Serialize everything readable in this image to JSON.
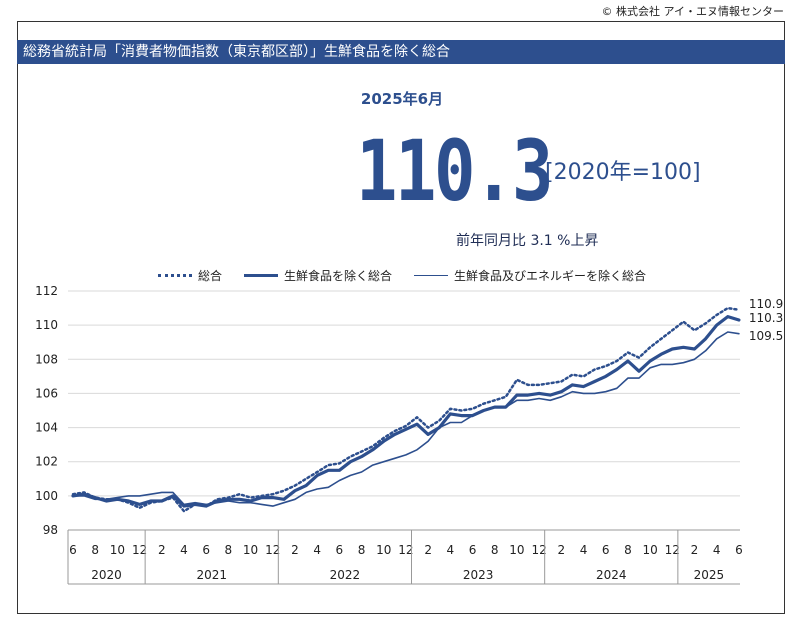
{
  "copyright": "© 株式会社 アイ・エヌ情報センター",
  "title": "総務省統計局「消費者物価指数（東京都区部）」生鮮食品を除く総合",
  "period": "2025年6月",
  "headline_value": "110.3",
  "base": "[2020年=100]",
  "yoy": "前年同月比  3.1 %上昇",
  "colors": {
    "accent": "#2d4f8e",
    "series": "#2d4f8e"
  },
  "chart_data": {
    "type": "line",
    "title": "",
    "xlabel": "",
    "ylabel": "",
    "ylim": [
      98,
      112
    ],
    "yticks": [
      98,
      100,
      102,
      104,
      106,
      108,
      110,
      112
    ],
    "grid": true,
    "legend_position": "top",
    "x_month_labels": [
      "6",
      "8",
      "10",
      "12",
      "2",
      "4",
      "6",
      "8",
      "10",
      "12",
      "2",
      "4",
      "6",
      "8",
      "10",
      "12",
      "2",
      "4",
      "6",
      "8",
      "10",
      "12",
      "2",
      "4",
      "6",
      "8",
      "10",
      "12",
      "2",
      "4",
      "6"
    ],
    "year_labels": [
      "2020",
      "2021",
      "2022",
      "2023",
      "2024",
      "2025"
    ],
    "x": [
      "2020-06",
      "2020-07",
      "2020-08",
      "2020-09",
      "2020-10",
      "2020-11",
      "2020-12",
      "2021-01",
      "2021-02",
      "2021-03",
      "2021-04",
      "2021-05",
      "2021-06",
      "2021-07",
      "2021-08",
      "2021-09",
      "2021-10",
      "2021-11",
      "2021-12",
      "2022-01",
      "2022-02",
      "2022-03",
      "2022-04",
      "2022-05",
      "2022-06",
      "2022-07",
      "2022-08",
      "2022-09",
      "2022-10",
      "2022-11",
      "2022-12",
      "2023-01",
      "2023-02",
      "2023-03",
      "2023-04",
      "2023-05",
      "2023-06",
      "2023-07",
      "2023-08",
      "2023-09",
      "2023-10",
      "2023-11",
      "2023-12",
      "2024-01",
      "2024-02",
      "2024-03",
      "2024-04",
      "2024-05",
      "2024-06",
      "2024-07",
      "2024-08",
      "2024-09",
      "2024-10",
      "2024-11",
      "2024-12",
      "2025-01",
      "2025-02",
      "2025-03",
      "2025-04",
      "2025-05",
      "2025-06"
    ],
    "series": [
      {
        "name": "総合",
        "style": "dotted",
        "values": [
          100.1,
          100.2,
          99.9,
          99.8,
          99.8,
          99.6,
          99.3,
          99.6,
          99.7,
          99.9,
          99.1,
          99.5,
          99.4,
          99.8,
          99.9,
          100.1,
          99.9,
          100.0,
          100.1,
          100.3,
          100.6,
          101.0,
          101.4,
          101.8,
          101.9,
          102.3,
          102.6,
          102.9,
          103.4,
          103.8,
          104.1,
          104.6,
          104.0,
          104.4,
          105.1,
          105.0,
          105.1,
          105.4,
          105.6,
          105.8,
          106.8,
          106.5,
          106.5,
          106.6,
          106.7,
          107.1,
          107.0,
          107.4,
          107.6,
          107.9,
          108.4,
          108.1,
          108.7,
          109.2,
          109.7,
          110.2,
          109.7,
          110.1,
          110.6,
          111.0,
          110.9
        ]
      },
      {
        "name": "生鮮食品を除く総合",
        "style": "thick",
        "values": [
          100.0,
          100.1,
          99.9,
          99.7,
          99.8,
          99.7,
          99.5,
          99.7,
          99.7,
          100.0,
          99.4,
          99.5,
          99.4,
          99.7,
          99.8,
          99.8,
          99.7,
          99.9,
          99.9,
          99.8,
          100.3,
          100.6,
          101.2,
          101.5,
          101.5,
          102.0,
          102.3,
          102.7,
          103.2,
          103.6,
          103.9,
          104.2,
          103.6,
          104.0,
          104.8,
          104.7,
          104.7,
          105.0,
          105.2,
          105.2,
          105.9,
          105.9,
          106.0,
          105.9,
          106.1,
          106.5,
          106.4,
          106.7,
          107.0,
          107.4,
          107.9,
          107.3,
          107.9,
          108.3,
          108.6,
          108.7,
          108.6,
          109.2,
          110.0,
          110.5,
          110.3
        ]
      },
      {
        "name": "生鮮食品及びエネルギーを除く総合",
        "style": "thin",
        "values": [
          100.0,
          100.0,
          99.8,
          99.8,
          99.9,
          100.0,
          100.0,
          100.1,
          100.2,
          100.2,
          99.5,
          99.6,
          99.5,
          99.6,
          99.7,
          99.6,
          99.6,
          99.5,
          99.4,
          99.6,
          99.8,
          100.2,
          100.4,
          100.5,
          100.9,
          101.2,
          101.4,
          101.8,
          102.0,
          102.2,
          102.4,
          102.7,
          103.2,
          104.0,
          104.3,
          104.3,
          104.7,
          105.0,
          105.2,
          105.2,
          105.6,
          105.6,
          105.7,
          105.6,
          105.8,
          106.1,
          106.0,
          106.0,
          106.1,
          106.3,
          106.9,
          106.9,
          107.5,
          107.7,
          107.7,
          107.8,
          108.0,
          108.5,
          109.2,
          109.6,
          109.5
        ]
      }
    ],
    "end_labels": [
      "110.9",
      "110.3",
      "109.5"
    ]
  }
}
